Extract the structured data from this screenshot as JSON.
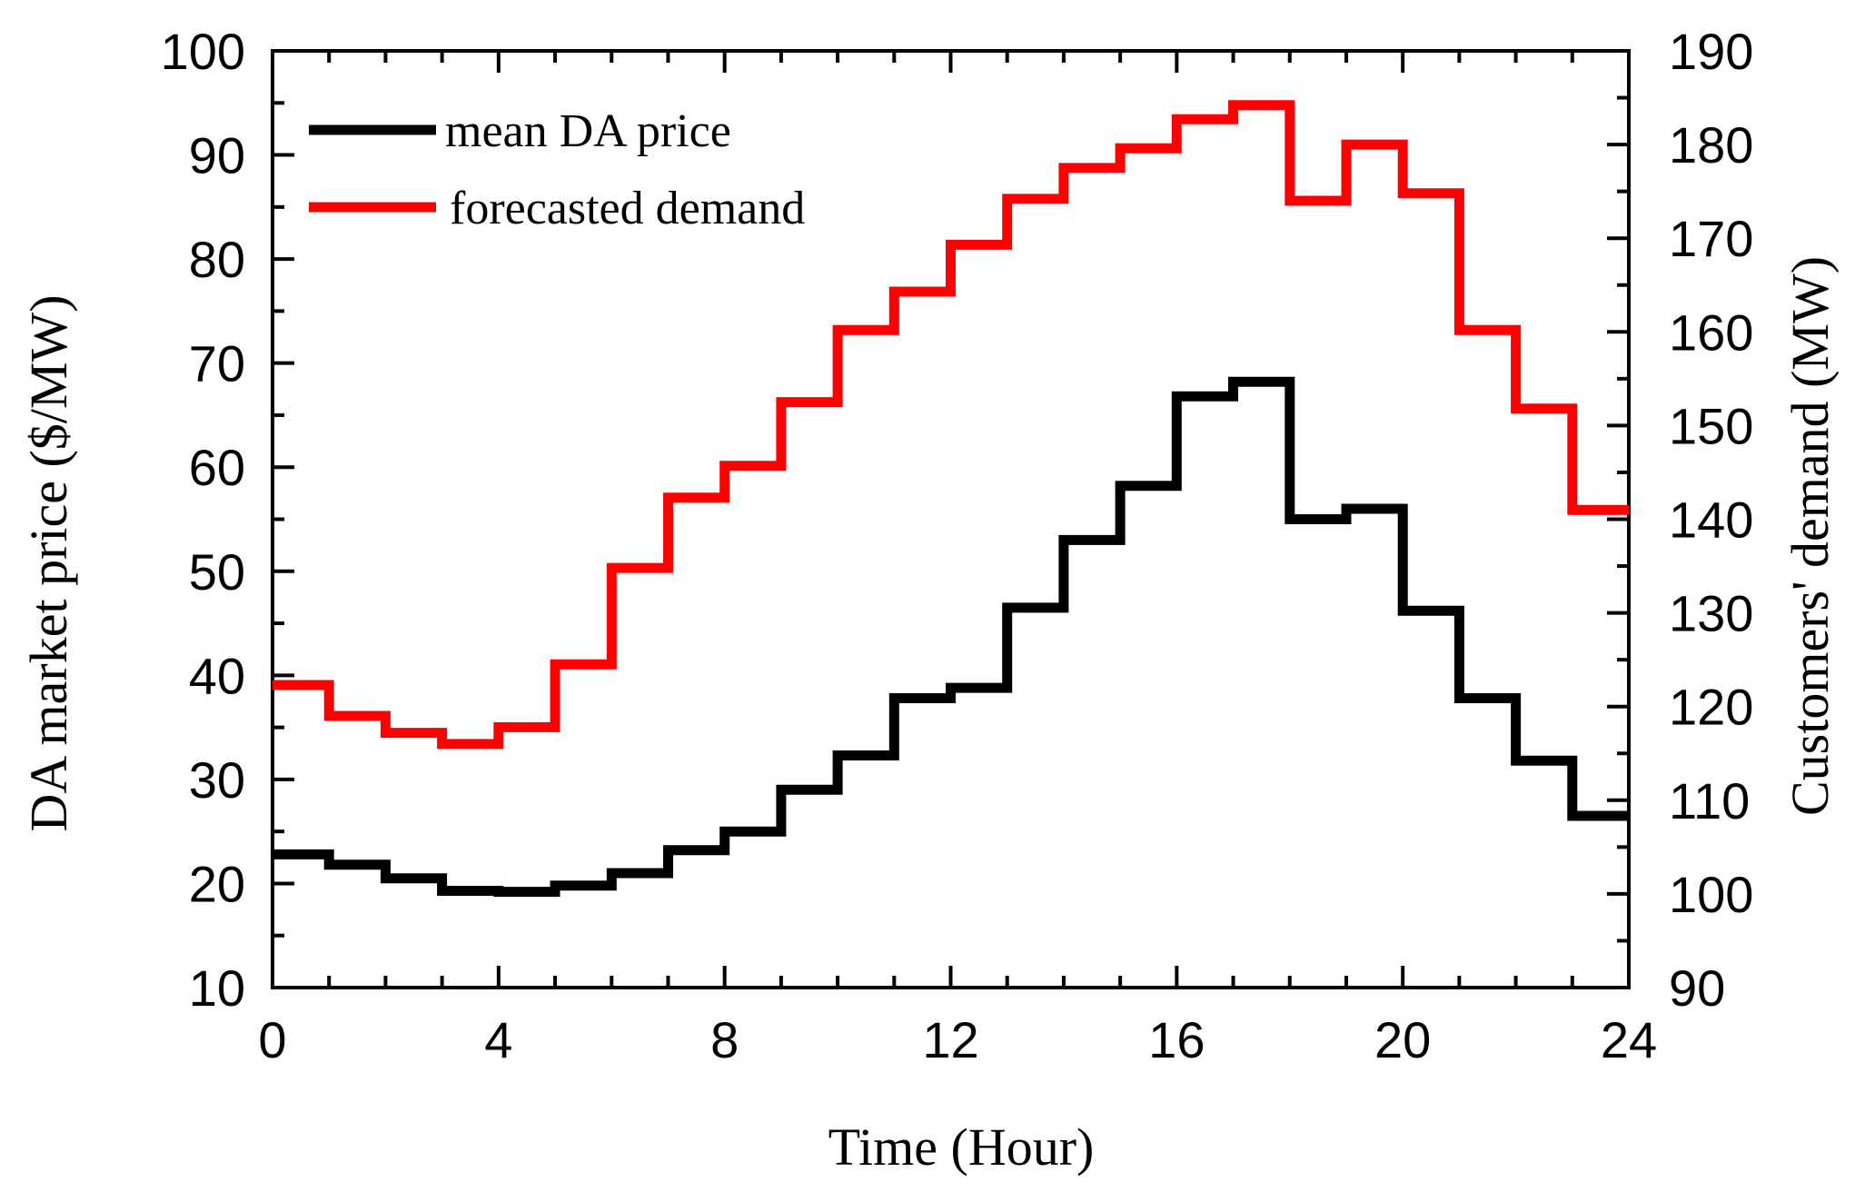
{
  "chart_data": {
    "type": "line",
    "step": true,
    "title": "",
    "xlabel": "Time (Hour)",
    "ylabel_left": "DA market price ($/MW)",
    "ylabel_right": "Customers' demand (MW)",
    "xlim": [
      0,
      24
    ],
    "ylim_left": [
      10,
      100
    ],
    "ylim_right": [
      90,
      190
    ],
    "x_ticks": [
      0,
      4,
      8,
      12,
      16,
      20,
      24
    ],
    "x_minor_step": 1,
    "y_left_ticks": [
      10,
      20,
      30,
      40,
      50,
      60,
      70,
      80,
      90,
      100
    ],
    "y_left_minor_step": 5,
    "y_right_ticks": [
      90,
      100,
      110,
      120,
      130,
      140,
      150,
      160,
      170,
      180,
      190
    ],
    "y_right_minor_step": 5,
    "grid": false,
    "legend_position": "top-left",
    "series": [
      {
        "name": "mean DA price",
        "axis": "left",
        "color": "#000000",
        "x": [
          0,
          1,
          2,
          3,
          4,
          5,
          6,
          7,
          8,
          9,
          10,
          11,
          12,
          13,
          14,
          15,
          16,
          17,
          18,
          19,
          20,
          21,
          22,
          23
        ],
        "values": [
          22.8,
          21.8,
          20.5,
          19.3,
          19.2,
          19.8,
          21.0,
          23.2,
          25.0,
          29.0,
          32.3,
          37.8,
          38.8,
          46.5,
          53.0,
          58.2,
          66.8,
          68.2,
          55.0,
          56.0,
          46.2,
          37.8,
          31.8,
          26.5
        ]
      },
      {
        "name": "forecasted demand",
        "axis": "right",
        "color": "#ff0000",
        "x": [
          0,
          1,
          2,
          3,
          4,
          5,
          6,
          7,
          8,
          9,
          10,
          11,
          12,
          13,
          14,
          15,
          16,
          17,
          18,
          19,
          20,
          21,
          22,
          23
        ],
        "values": [
          122.3,
          119.0,
          117.2,
          116.0,
          117.8,
          124.5,
          134.8,
          142.3,
          145.7,
          152.5,
          160.2,
          164.3,
          169.3,
          174.2,
          177.5,
          179.6,
          182.7,
          184.2,
          174.0,
          180.0,
          174.8,
          160.2,
          151.8,
          141.0
        ]
      }
    ]
  }
}
